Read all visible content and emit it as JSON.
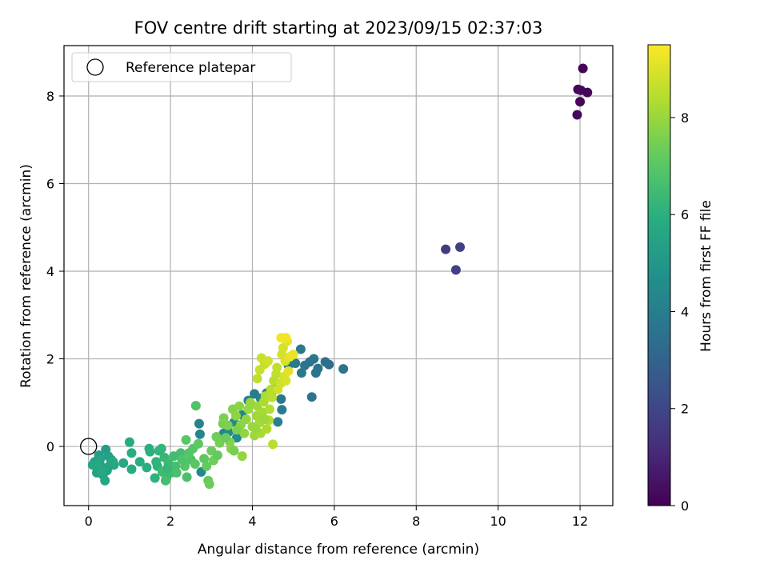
{
  "chart_data": {
    "type": "scatter",
    "title": "FOV centre drift starting at 2023/09/15 02:37:03",
    "xlabel": "Angular distance from reference (arcmin)",
    "ylabel": "Rotation from reference (arcmin)",
    "colorbar_label": "Hours from first FF file",
    "xlim": [
      -0.6,
      12.8
    ],
    "ylim": [
      -1.35,
      9.15
    ],
    "clim": [
      0,
      9.5
    ],
    "x_ticks": [
      0,
      2,
      4,
      6,
      8,
      10,
      12
    ],
    "y_ticks": [
      0,
      2,
      4,
      6,
      8
    ],
    "colorbar_ticks": [
      0,
      2,
      4,
      6,
      8
    ],
    "grid": true,
    "colormap": "viridis",
    "legend": {
      "location": "upper left",
      "entries": [
        {
          "label": "Reference platepar",
          "marker": "open-circle",
          "x": 0,
          "y": 0
        }
      ]
    },
    "points": [
      [
        12.07,
        8.63,
        0.1
      ],
      [
        11.95,
        8.15,
        0.1
      ],
      [
        12.02,
        8.13,
        0.2
      ],
      [
        12.18,
        8.08,
        0.1
      ],
      [
        12.0,
        7.87,
        0.2
      ],
      [
        11.93,
        7.57,
        0.2
      ],
      [
        8.72,
        4.5,
        1.7
      ],
      [
        9.07,
        4.55,
        1.8
      ],
      [
        8.97,
        4.03,
        1.8
      ],
      [
        6.22,
        1.77,
        3.6
      ],
      [
        5.87,
        1.87,
        3.4
      ],
      [
        5.78,
        1.93,
        3.5
      ],
      [
        5.6,
        1.78,
        3.6
      ],
      [
        5.5,
        2.0,
        3.7
      ],
      [
        5.4,
        1.93,
        3.6
      ],
      [
        5.55,
        1.68,
        3.7
      ],
      [
        5.18,
        2.22,
        3.8
      ],
      [
        5.28,
        1.85,
        3.7
      ],
      [
        5.2,
        1.68,
        3.8
      ],
      [
        5.45,
        1.13,
        3.6
      ],
      [
        5.05,
        1.9,
        3.9
      ],
      [
        4.88,
        1.85,
        4.0
      ],
      [
        4.7,
        1.08,
        3.8
      ],
      [
        4.72,
        0.84,
        3.9
      ],
      [
        4.55,
        1.3,
        4.0
      ],
      [
        4.35,
        1.22,
        4.0
      ],
      [
        4.2,
        1.1,
        4.1
      ],
      [
        4.05,
        1.2,
        4.0
      ],
      [
        3.9,
        1.05,
        4.1
      ],
      [
        4.62,
        0.56,
        4.1
      ],
      [
        3.75,
        0.72,
        4.2
      ],
      [
        3.3,
        0.3,
        4.3
      ],
      [
        3.55,
        0.55,
        4.4
      ],
      [
        3.42,
        0.33,
        4.4
      ],
      [
        3.62,
        0.2,
        4.5
      ],
      [
        0.42,
        -0.07,
        5.2
      ],
      [
        0.25,
        -0.2,
        5.3
      ],
      [
        0.55,
        -0.3,
        5.3
      ],
      [
        0.3,
        -0.45,
        5.4
      ],
      [
        0.15,
        -0.35,
        5.3
      ],
      [
        0.45,
        -0.55,
        5.4
      ],
      [
        0.35,
        -0.65,
        5.5
      ],
      [
        0.2,
        -0.6,
        5.4
      ],
      [
        0.5,
        -0.45,
        5.5
      ],
      [
        0.62,
        -0.42,
        5.5
      ],
      [
        0.4,
        -0.78,
        5.6
      ],
      [
        0.28,
        -0.3,
        5.5
      ],
      [
        0.1,
        -0.42,
        5.6
      ],
      [
        0.48,
        -0.22,
        5.4
      ],
      [
        0.85,
        -0.38,
        5.7
      ],
      [
        1.0,
        0.1,
        5.8
      ],
      [
        1.05,
        -0.15,
        5.9
      ],
      [
        1.05,
        -0.52,
        5.8
      ],
      [
        1.25,
        -0.35,
        5.9
      ],
      [
        1.42,
        -0.48,
        6.0
      ],
      [
        1.48,
        -0.05,
        5.9
      ],
      [
        1.5,
        -0.12,
        6.0
      ],
      [
        1.62,
        -0.72,
        6.1
      ],
      [
        1.68,
        -0.45,
        6.1
      ],
      [
        1.72,
        -0.1,
        6.2
      ],
      [
        1.78,
        -0.05,
        6.2
      ],
      [
        1.85,
        -0.25,
        6.3
      ],
      [
        1.9,
        -0.72,
        6.3
      ],
      [
        1.95,
        -0.38,
        6.4
      ],
      [
        2.02,
        -0.6,
        6.4
      ],
      [
        2.08,
        -0.22,
        6.5
      ],
      [
        1.8,
        -0.58,
        6.5
      ],
      [
        1.88,
        -0.78,
        6.6
      ],
      [
        2.12,
        -0.45,
        6.6
      ],
      [
        2.25,
        -0.15,
        6.6
      ],
      [
        2.4,
        -0.7,
        6.7
      ],
      [
        2.62,
        0.93,
        6.8
      ],
      [
        2.5,
        -0.3,
        6.8
      ],
      [
        2.35,
        -0.45,
        6.9
      ],
      [
        2.7,
        0.52,
        4.2
      ],
      [
        2.72,
        0.28,
        4.3
      ],
      [
        2.75,
        -0.58,
        4.5
      ],
      [
        2.38,
        0.15,
        7.0
      ],
      [
        2.55,
        -0.05,
        7.0
      ],
      [
        2.68,
        0.06,
        7.1
      ],
      [
        2.82,
        -0.28,
        7.1
      ],
      [
        2.88,
        -0.45,
        7.2
      ],
      [
        2.92,
        -0.78,
        7.2
      ],
      [
        2.95,
        -0.86,
        7.3
      ],
      [
        3.0,
        -0.1,
        7.3
      ],
      [
        3.05,
        -0.32,
        7.4
      ],
      [
        3.12,
        0.22,
        7.4
      ],
      [
        3.2,
        0.08,
        7.5
      ],
      [
        3.28,
        0.52,
        7.5
      ],
      [
        3.3,
        0.65,
        7.6
      ],
      [
        3.4,
        0.48,
        7.6
      ],
      [
        3.45,
        0.1,
        7.7
      ],
      [
        3.48,
        -0.05,
        7.7
      ],
      [
        3.52,
        0.85,
        7.7
      ],
      [
        3.6,
        0.7,
        7.8
      ],
      [
        3.68,
        0.92,
        7.8
      ],
      [
        3.72,
        0.5,
        7.8
      ],
      [
        3.75,
        -0.22,
        7.9
      ],
      [
        3.8,
        0.3,
        7.9
      ],
      [
        3.85,
        0.62,
        7.9
      ],
      [
        3.9,
        0.85,
        8.0
      ],
      [
        3.95,
        1.0,
        8.0
      ],
      [
        4.0,
        0.45,
        8.0
      ],
      [
        4.05,
        0.25,
        8.1
      ],
      [
        4.1,
        0.7,
        8.1
      ],
      [
        4.12,
        0.92,
        8.1
      ],
      [
        4.18,
        0.55,
        8.2
      ],
      [
        4.2,
        0.3,
        8.2
      ],
      [
        4.25,
        0.78,
        8.2
      ],
      [
        4.28,
        1.02,
        8.3
      ],
      [
        4.32,
        1.15,
        8.3
      ],
      [
        4.35,
        0.4,
        8.3
      ],
      [
        4.4,
        0.6,
        8.4
      ],
      [
        4.42,
        0.85,
        8.4
      ],
      [
        4.45,
        1.3,
        8.4
      ],
      [
        4.48,
        1.12,
        8.5
      ],
      [
        4.5,
        0.05,
        8.5
      ],
      [
        4.52,
        1.5,
        8.5
      ],
      [
        4.58,
        1.65,
        8.6
      ],
      [
        4.6,
        1.8,
        8.6
      ],
      [
        4.12,
        1.55,
        8.6
      ],
      [
        4.18,
        1.75,
        8.7
      ],
      [
        4.22,
        2.02,
        8.7
      ],
      [
        4.3,
        1.88,
        8.7
      ],
      [
        4.38,
        1.95,
        8.8
      ],
      [
        4.62,
        1.3,
        8.8
      ],
      [
        4.7,
        1.45,
        8.8
      ],
      [
        4.72,
        2.1,
        8.9
      ],
      [
        4.75,
        2.25,
        8.9
      ],
      [
        4.78,
        1.6,
        8.9
      ],
      [
        4.8,
        1.95,
        9.0
      ],
      [
        4.82,
        1.5,
        9.0
      ],
      [
        4.85,
        2.4,
        9.1
      ],
      [
        4.88,
        1.72,
        9.1
      ],
      [
        4.92,
        2.05,
        9.2
      ],
      [
        5.0,
        2.1,
        9.2
      ],
      [
        4.7,
        2.48,
        9.3
      ],
      [
        4.82,
        2.48,
        9.3
      ],
      [
        0.2,
        -0.38,
        5.6
      ],
      [
        0.32,
        -0.55,
        5.7
      ],
      [
        0.6,
        -0.35,
        5.7
      ],
      [
        1.65,
        -0.35,
        6.1
      ],
      [
        1.92,
        -0.5,
        6.3
      ],
      [
        2.15,
        -0.6,
        6.7
      ],
      [
        2.28,
        -0.3,
        6.8
      ],
      [
        2.45,
        -0.15,
        6.9
      ],
      [
        2.6,
        -0.4,
        7.0
      ],
      [
        3.15,
        -0.2,
        7.2
      ],
      [
        3.35,
        0.2,
        7.3
      ],
      [
        3.55,
        -0.1,
        7.5
      ],
      [
        3.62,
        0.38,
        7.6
      ],
      [
        4.08,
        0.4,
        8.0
      ],
      [
        4.3,
        0.62,
        8.1
      ]
    ]
  }
}
